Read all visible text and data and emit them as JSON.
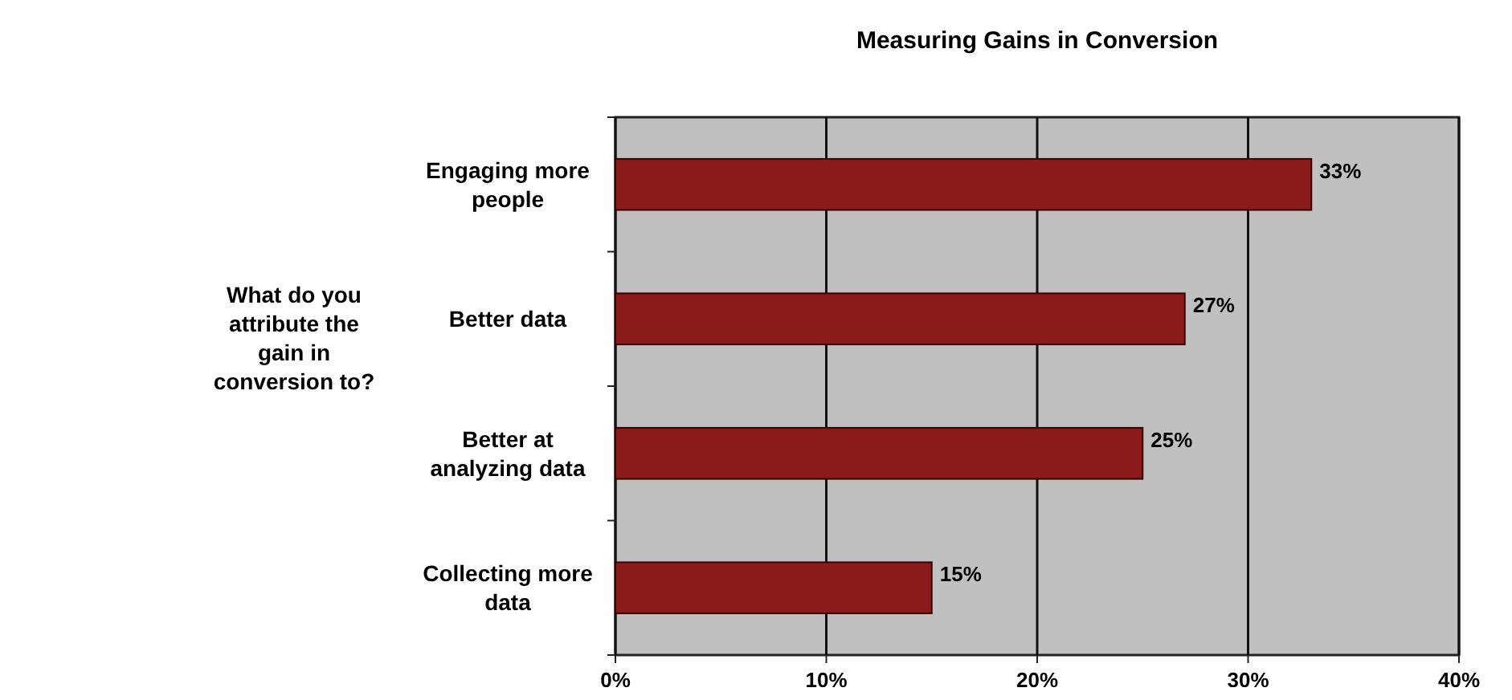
{
  "chart_data": {
    "type": "bar",
    "orientation": "horizontal",
    "title": "Measuring Gains in Conversion",
    "ylabel": "What do you attribute the gain in conversion to?",
    "categories": [
      "Engaging more people",
      "Better data",
      "Better at analyzing data",
      "Collecting more data"
    ],
    "values": [
      33,
      27,
      25,
      15
    ],
    "color": "#8b1a1a",
    "value_labels": [
      "33%",
      "27%",
      "25%",
      "15%"
    ],
    "xlim": [
      0,
      40
    ],
    "xticks": [
      {
        "value": 0,
        "label": "0%"
      },
      {
        "value": 10,
        "label": "10%"
      },
      {
        "value": 20,
        "label": "20%"
      },
      {
        "value": 30,
        "label": "30%"
      },
      {
        "value": 40,
        "label": "40%"
      }
    ],
    "grid": "x"
  }
}
